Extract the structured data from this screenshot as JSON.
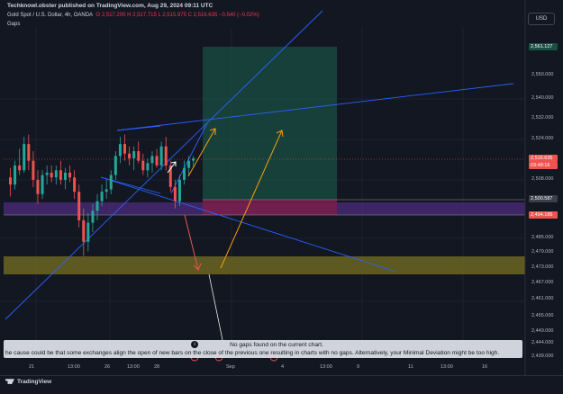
{
  "header": {
    "publisher": "Techknowl.obster published on TradingView.com, Aug 29, 2024 09:11 UTC",
    "symbol": "Gold Spot / U.S. Dollar, 4h, OANDA",
    "ohlc": "O 2,517.205  H 2,517.715  L 2,515.975  C 2,516.635  −0.540 (−0.02%)",
    "indicator": "Gaps",
    "currency_button": "USD"
  },
  "price_scale": {
    "labels": [
      "2,550.000",
      "2,540.000",
      "2,532.000",
      "2,524.000",
      "2,508.000",
      "2,485.000",
      "2,479.000",
      "2,473.000",
      "2,467.000",
      "2,461.000",
      "2,455.000",
      "2,449.000",
      "2,444.000",
      "2,439.000"
    ],
    "badges": {
      "target": "2,561.127",
      "last_price": "2,516.635",
      "countdown": "03:48:16",
      "entry": "2,500.587",
      "stop": "2,494.186"
    }
  },
  "time_axis": [
    "21",
    "13:00",
    "26",
    "13:00",
    "28",
    "Sep",
    "4",
    "13:00",
    "9",
    "11",
    "13:00",
    "16"
  ],
  "notice": {
    "title": "No gaps found on the current chart.",
    "detail": "he cause could be that some exchanges align the open of new bars on the close of the previous one resulting in charts with no gaps. Alternatively, your Minimal Deviation might be too high."
  },
  "footer": {
    "brand": "TradingView"
  },
  "colors": {
    "background": "#131722",
    "up": "#26a69a",
    "down": "#ef5350",
    "target_zone": "#1a4f43",
    "stop_zone": "#6a1e48",
    "support_zone": "#6b6520",
    "purple_band": "#4a2a78",
    "trendline": "#2962ff",
    "arrow_orange": "#f59e0b",
    "arrow_red": "#ef5350"
  },
  "chart_data": {
    "type": "candlestick",
    "symbol": "Gold Spot / U.S. Dollar",
    "interval": "4h",
    "candles": [
      {
        "o": 2509,
        "h": 2513,
        "l": 2501,
        "c": 2506
      },
      {
        "o": 2506,
        "h": 2516,
        "l": 2504,
        "c": 2514
      },
      {
        "o": 2514,
        "h": 2521,
        "l": 2510,
        "c": 2512
      },
      {
        "o": 2512,
        "h": 2526,
        "l": 2511,
        "c": 2523
      },
      {
        "o": 2523,
        "h": 2527,
        "l": 2512,
        "c": 2516
      },
      {
        "o": 2516,
        "h": 2520,
        "l": 2505,
        "c": 2508
      },
      {
        "o": 2508,
        "h": 2512,
        "l": 2498,
        "c": 2502
      },
      {
        "o": 2502,
        "h": 2512,
        "l": 2500,
        "c": 2510
      },
      {
        "o": 2510,
        "h": 2514,
        "l": 2506,
        "c": 2511
      },
      {
        "o": 2511,
        "h": 2514,
        "l": 2507,
        "c": 2509
      },
      {
        "o": 2509,
        "h": 2514,
        "l": 2506,
        "c": 2512
      },
      {
        "o": 2512,
        "h": 2516,
        "l": 2506,
        "c": 2508
      },
      {
        "o": 2508,
        "h": 2513,
        "l": 2504,
        "c": 2511
      },
      {
        "o": 2511,
        "h": 2514,
        "l": 2507,
        "c": 2509
      },
      {
        "o": 2509,
        "h": 2512,
        "l": 2500,
        "c": 2503
      },
      {
        "o": 2503,
        "h": 2506,
        "l": 2488,
        "c": 2491
      },
      {
        "o": 2491,
        "h": 2496,
        "l": 2476,
        "c": 2482
      },
      {
        "o": 2482,
        "h": 2494,
        "l": 2478,
        "c": 2490
      },
      {
        "o": 2490,
        "h": 2498,
        "l": 2486,
        "c": 2495
      },
      {
        "o": 2495,
        "h": 2502,
        "l": 2491,
        "c": 2499
      },
      {
        "o": 2499,
        "h": 2506,
        "l": 2497,
        "c": 2503
      },
      {
        "o": 2503,
        "h": 2508,
        "l": 2500,
        "c": 2504
      },
      {
        "o": 2504,
        "h": 2512,
        "l": 2502,
        "c": 2510
      },
      {
        "o": 2510,
        "h": 2520,
        "l": 2508,
        "c": 2518
      },
      {
        "o": 2518,
        "h": 2526,
        "l": 2515,
        "c": 2523
      },
      {
        "o": 2523,
        "h": 2527,
        "l": 2516,
        "c": 2519
      },
      {
        "o": 2519,
        "h": 2522,
        "l": 2514,
        "c": 2517
      },
      {
        "o": 2517,
        "h": 2522,
        "l": 2512,
        "c": 2520
      },
      {
        "o": 2520,
        "h": 2524,
        "l": 2515,
        "c": 2516
      },
      {
        "o": 2516,
        "h": 2519,
        "l": 2510,
        "c": 2512
      },
      {
        "o": 2512,
        "h": 2517,
        "l": 2509,
        "c": 2515
      },
      {
        "o": 2515,
        "h": 2520,
        "l": 2511,
        "c": 2518
      },
      {
        "o": 2518,
        "h": 2521,
        "l": 2513,
        "c": 2514
      },
      {
        "o": 2514,
        "h": 2524,
        "l": 2512,
        "c": 2522
      },
      {
        "o": 2522,
        "h": 2526,
        "l": 2512,
        "c": 2514
      },
      {
        "o": 2514,
        "h": 2516,
        "l": 2503,
        "c": 2505
      },
      {
        "o": 2505,
        "h": 2508,
        "l": 2496,
        "c": 2499
      },
      {
        "o": 2499,
        "h": 2510,
        "l": 2497,
        "c": 2508
      },
      {
        "o": 2508,
        "h": 2516,
        "l": 2506,
        "c": 2513
      },
      {
        "o": 2513,
        "h": 2518,
        "l": 2510,
        "c": 2516
      },
      {
        "o": 2516,
        "h": 2518,
        "l": 2513,
        "c": 2517
      }
    ],
    "last_price": 2516.635,
    "zones": {
      "target": [
        2500.587,
        2561.127
      ],
      "stop": [
        2494.186,
        2500.587
      ],
      "support": [
        2470,
        2476
      ]
    }
  }
}
